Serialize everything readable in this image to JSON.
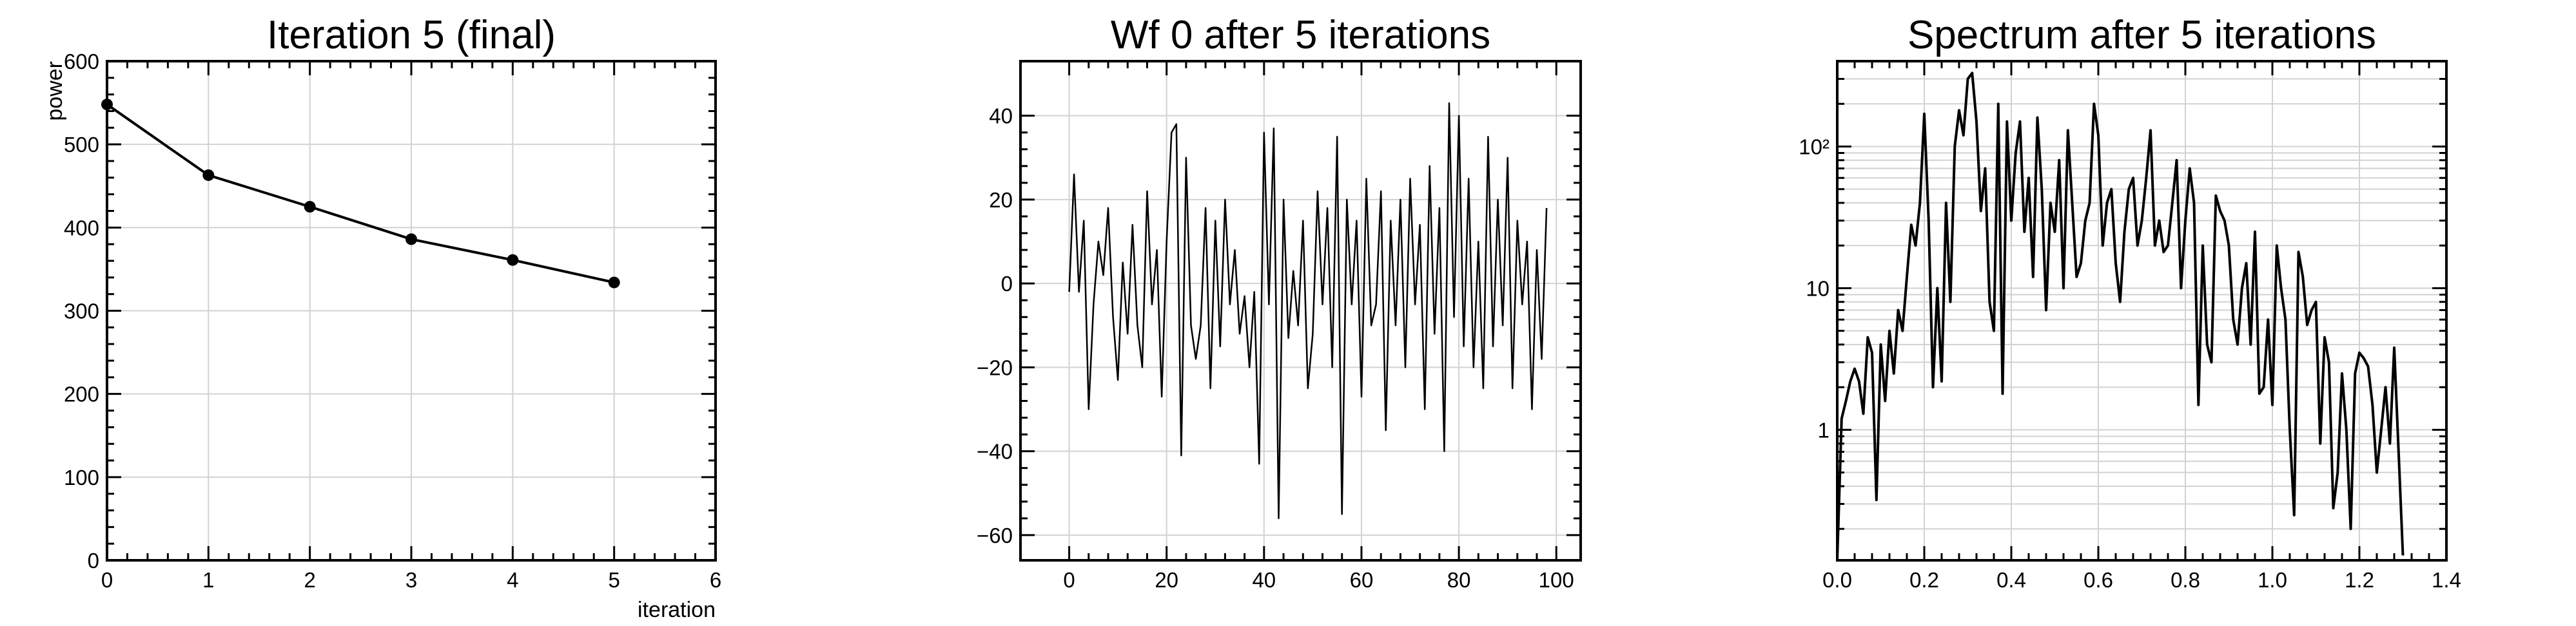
{
  "chart_data": [
    {
      "type": "line",
      "title": "Iteration 5 (final)",
      "xlabel": "iteration",
      "ylabel": "power",
      "xlim": [
        0,
        6
      ],
      "ylim": [
        0,
        600
      ],
      "xticks": [
        "0",
        "1",
        "2",
        "3",
        "4",
        "5",
        "6"
      ],
      "yticks": [
        "0",
        "100",
        "200",
        "300",
        "400",
        "500",
        "600"
      ],
      "grid": true,
      "markers": true,
      "series": [
        {
          "x": [
            0,
            1,
            2,
            3,
            4,
            5
          ],
          "y": [
            548,
            463,
            425,
            386,
            361,
            334
          ]
        }
      ]
    },
    {
      "type": "line",
      "title": "Wf 0 after 5 iterations",
      "xlabel": "",
      "ylabel": "",
      "xlim": [
        -10,
        105
      ],
      "ylim": [
        -66,
        53
      ],
      "xticks": [
        "0",
        "20",
        "40",
        "60",
        "80",
        "100"
      ],
      "yticks": [
        "−60",
        "−40",
        "−20",
        "0",
        "20",
        "40"
      ],
      "grid": true,
      "series": [
        {
          "x": [
            0,
            1,
            2,
            3,
            4,
            5,
            6,
            7,
            8,
            9,
            10,
            11,
            12,
            13,
            14,
            15,
            16,
            17,
            18,
            19,
            20,
            21,
            22,
            23,
            24,
            25,
            26,
            27,
            28,
            29,
            30,
            31,
            32,
            33,
            34,
            35,
            36,
            37,
            38,
            39,
            40,
            41,
            42,
            43,
            44,
            45,
            46,
            47,
            48,
            49,
            50,
            51,
            52,
            53,
            54,
            55,
            56,
            57,
            58,
            59,
            60,
            61,
            62,
            63,
            64,
            65,
            66,
            67,
            68,
            69,
            70,
            71,
            72,
            73,
            74,
            75,
            76,
            77,
            78,
            79,
            80,
            81,
            82,
            83,
            84,
            85,
            86,
            87,
            88,
            89,
            90,
            91,
            92,
            93,
            94,
            95,
            96,
            97,
            98
          ],
          "y": [
            -2,
            26,
            -2,
            15,
            -30,
            -5,
            10,
            2,
            18,
            -8,
            -23,
            5,
            -12,
            14,
            -10,
            -20,
            22,
            -5,
            8,
            -27,
            10,
            36,
            38,
            -41,
            30,
            -10,
            -18,
            -10,
            18,
            -25,
            15,
            -15,
            20,
            -5,
            8,
            -12,
            -3,
            -20,
            -2,
            -43,
            36,
            -5,
            37,
            -56,
            20,
            -13,
            3,
            -10,
            15,
            -25,
            -12,
            22,
            -5,
            18,
            -20,
            35,
            -55,
            20,
            -5,
            15,
            -27,
            25,
            -10,
            -5,
            22,
            -35,
            15,
            -10,
            20,
            -20,
            25,
            -5,
            14,
            -30,
            28,
            -12,
            18,
            -40,
            43,
            -8,
            40,
            -15,
            25,
            -20,
            10,
            -25,
            35,
            -15,
            20,
            -10,
            30,
            -25,
            15,
            -5,
            10,
            -30,
            8,
            -18,
            18
          ]
        }
      ]
    },
    {
      "type": "line",
      "title": "Spectrum after 5 iterations",
      "xlabel": "",
      "ylabel": "",
      "xlim": [
        0.0,
        1.4
      ],
      "ylim": [
        0.12,
        400
      ],
      "yscale": "log",
      "xticks": [
        "0.0",
        "0.2",
        "0.4",
        "0.6",
        "0.8",
        "1.0",
        "1.2",
        "1.4"
      ],
      "yticks": [
        "1",
        "10",
        "10²"
      ],
      "grid": true,
      "series": [
        {
          "x": [
            0.0,
            0.01,
            0.02,
            0.03,
            0.04,
            0.05,
            0.06,
            0.07,
            0.08,
            0.09,
            0.1,
            0.11,
            0.12,
            0.13,
            0.14,
            0.15,
            0.16,
            0.17,
            0.18,
            0.19,
            0.2,
            0.21,
            0.22,
            0.23,
            0.24,
            0.25,
            0.26,
            0.27,
            0.28,
            0.29,
            0.3,
            0.31,
            0.32,
            0.33,
            0.34,
            0.35,
            0.36,
            0.37,
            0.38,
            0.39,
            0.4,
            0.41,
            0.42,
            0.43,
            0.44,
            0.45,
            0.46,
            0.47,
            0.48,
            0.49,
            0.5,
            0.51,
            0.52,
            0.53,
            0.54,
            0.55,
            0.56,
            0.57,
            0.58,
            0.59,
            0.6,
            0.61,
            0.62,
            0.63,
            0.64,
            0.65,
            0.66,
            0.67,
            0.68,
            0.69,
            0.7,
            0.71,
            0.72,
            0.73,
            0.74,
            0.75,
            0.76,
            0.77,
            0.78,
            0.79,
            0.8,
            0.81,
            0.82,
            0.83,
            0.84,
            0.85,
            0.86,
            0.87,
            0.88,
            0.89,
            0.9,
            0.91,
            0.92,
            0.93,
            0.94,
            0.95,
            0.96,
            0.97,
            0.98,
            0.99,
            1.0,
            1.01,
            1.02,
            1.03,
            1.04,
            1.05,
            1.06,
            1.07,
            1.08,
            1.09,
            1.1,
            1.11,
            1.12,
            1.13,
            1.14,
            1.15,
            1.16,
            1.17,
            1.18,
            1.19,
            1.2,
            1.21,
            1.22,
            1.23,
            1.24,
            1.25,
            1.26,
            1.27,
            1.28,
            1.29,
            1.3
          ],
          "y": [
            0.12,
            1.2,
            1.6,
            2.2,
            2.7,
            2.2,
            1.3,
            4.5,
            3.5,
            0.32,
            4.0,
            1.6,
            5.0,
            2.5,
            7.0,
            5.0,
            12.0,
            28.0,
            20.0,
            40.0,
            170.0,
            30.0,
            2.0,
            10.0,
            2.2,
            40.0,
            8.0,
            100.0,
            180.0,
            120.0,
            300.0,
            330.0,
            150.0,
            35.0,
            70.0,
            8.0,
            5.0,
            200.0,
            1.8,
            150.0,
            30.0,
            90.0,
            150.0,
            25.0,
            60.0,
            12.0,
            160.0,
            50.0,
            7.0,
            40.0,
            25.0,
            80.0,
            10.0,
            130.0,
            40.0,
            12.0,
            15.0,
            30.0,
            40.0,
            200.0,
            120.0,
            20.0,
            40.0,
            50.0,
            15.0,
            8.0,
            25.0,
            50.0,
            60.0,
            20.0,
            30.0,
            60.0,
            130.0,
            20.0,
            30.0,
            18.0,
            20.0,
            40.0,
            80.0,
            10.0,
            30.0,
            70.0,
            40.0,
            1.5,
            20.0,
            4.0,
            3.0,
            45.0,
            35.0,
            30.0,
            20.0,
            6.0,
            4.0,
            10.0,
            15.0,
            4.0,
            25.0,
            1.8,
            2.0,
            6.0,
            1.5,
            20.0,
            10.0,
            6.0,
            1.0,
            0.25,
            18.0,
            12.0,
            5.5,
            7.0,
            8.0,
            0.8,
            4.5,
            3.0,
            0.28,
            0.5,
            2.5,
            1.0,
            0.2,
            2.5,
            3.5,
            3.2,
            2.8,
            1.5,
            0.5,
            1.0,
            2.0,
            0.8,
            3.8,
            0.7,
            0.13
          ]
        }
      ]
    }
  ]
}
